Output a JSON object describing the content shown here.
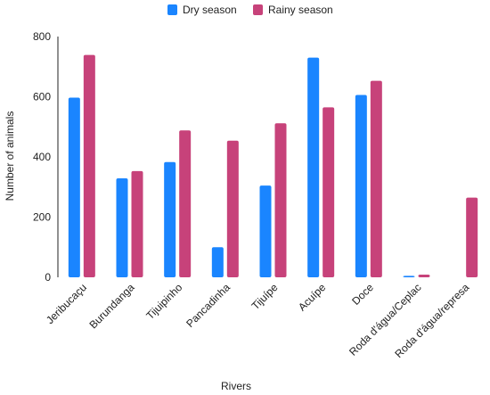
{
  "chart_data": {
    "type": "bar",
    "title": "",
    "xlabel": "Rivers",
    "ylabel": "Number of animals",
    "ylim": [
      0,
      800
    ],
    "yticks": [
      0,
      200,
      400,
      600,
      800
    ],
    "grid": false,
    "legend_position": "top-center",
    "categories": [
      "Jeribucaçu",
      "Burundanga",
      "Tijuipinho",
      "Pancadinha",
      "Tijuípe",
      "Acuípe",
      "Doce",
      "Roda d'água/Ceplac",
      "Roda d'água/represa"
    ],
    "series": [
      {
        "name": "Dry season",
        "color": "#1a85ff",
        "values": [
          597,
          329,
          383,
          100,
          305,
          730,
          606,
          5,
          0
        ]
      },
      {
        "name": "Rainy season",
        "color": "#c7427a",
        "values": [
          739,
          353,
          488,
          454,
          512,
          565,
          653,
          9,
          265
        ]
      }
    ]
  }
}
